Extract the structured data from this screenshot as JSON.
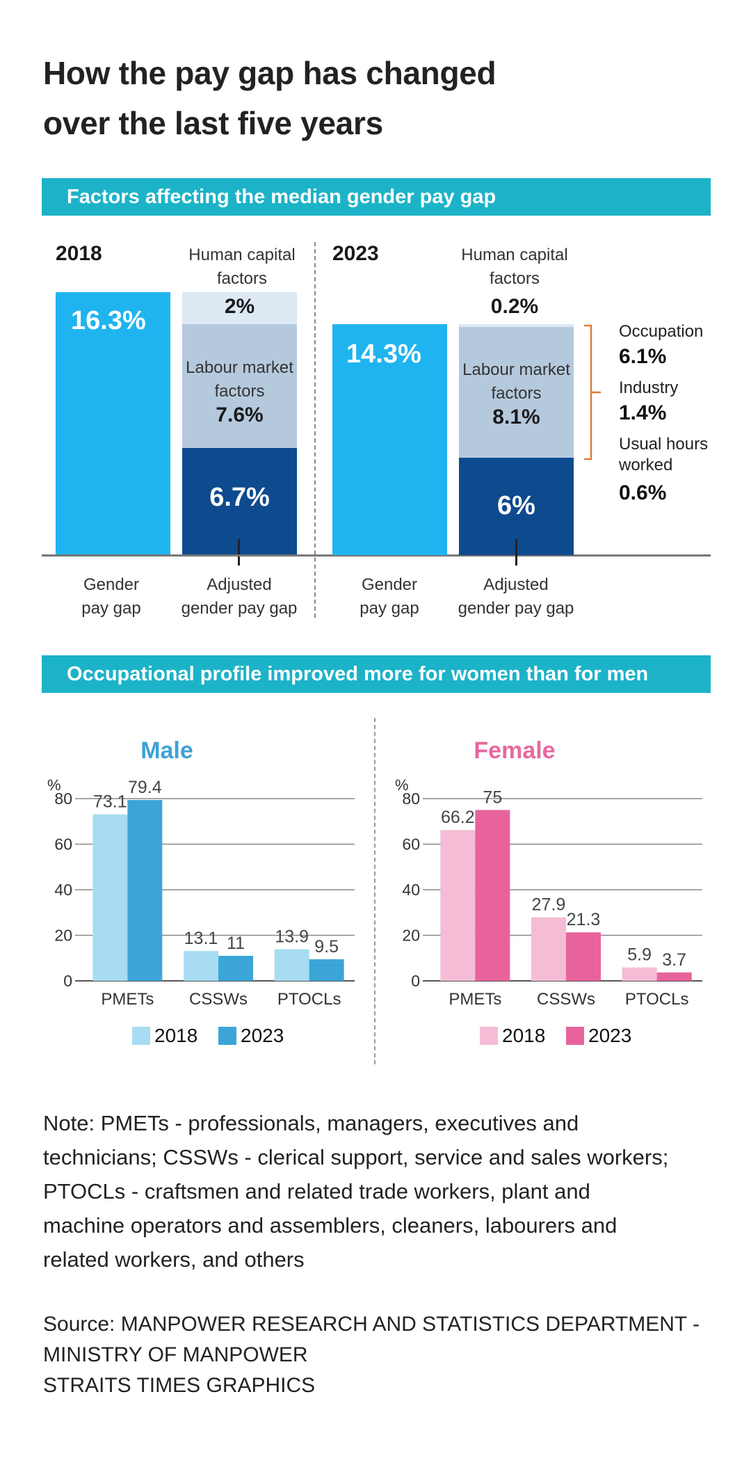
{
  "title_line1": "How the pay gap has changed",
  "title_line2": "over the last five years",
  "section1": {
    "banner": "Factors affecting the median gender pay gap",
    "y2018": {
      "year": "2018",
      "gender_gap": "16.3%",
      "human_capital_label_1": "Human capital",
      "human_capital_label_2": "factors",
      "human_capital_value": "2%",
      "labour_label_1": "Labour market",
      "labour_label_2": "factors",
      "labour_value": "7.6%",
      "adjusted_value": "6.7%",
      "bottom_gender_1": "Gender",
      "bottom_gender_2": "pay gap",
      "bottom_adjusted_1": "Adjusted",
      "bottom_adjusted_2": "gender pay gap"
    },
    "y2023": {
      "year": "2023",
      "gender_gap": "14.3%",
      "human_capital_label_1": "Human capital",
      "human_capital_label_2": "factors",
      "human_capital_value": "0.2%",
      "labour_label_1": "Labour market",
      "labour_label_2": "factors",
      "labour_value": "8.1%",
      "adjusted_value": "6%",
      "bottom_gender_1": "Gender",
      "bottom_gender_2": "pay gap",
      "bottom_adjusted_1": "Adjusted",
      "bottom_adjusted_2": "gender pay gap",
      "breakdown": {
        "occupation_label": "Occupation",
        "occupation_value": "6.1%",
        "industry_label": "Industry",
        "industry_value": "1.4%",
        "hours_label_1": "Usual hours",
        "hours_label_2": "worked",
        "hours_value": "0.6%"
      }
    }
  },
  "section2": {
    "banner": "Occupational profile improved more for women than for men"
  },
  "colors": {
    "banner": "#1cb3c8",
    "gender_gap_bar": "#1fb4ef",
    "human_capital": "#dde9f3",
    "labour_market": "#b5c9dd",
    "adjusted": "#0e4a8e",
    "male_2018": "#a8dcf2",
    "male_2023": "#3ba5d8",
    "female_2018": "#f4bdd5",
    "female_2023": "#e8639b",
    "male_title": "#3da2d6",
    "female_title": "#e8689e"
  },
  "chart_data": [
    {
      "type": "bar",
      "title": "Male",
      "ylabel": "%",
      "ylim": [
        0,
        80
      ],
      "yticks": [
        0,
        20,
        40,
        60,
        80
      ],
      "categories": [
        "PMETs",
        "CSSWs",
        "PTOCLs"
      ],
      "series": [
        {
          "name": "2018",
          "values": [
            73.1,
            13.1,
            13.9
          ]
        },
        {
          "name": "2023",
          "values": [
            79.4,
            11,
            9.5
          ]
        }
      ],
      "legend": "bottom"
    },
    {
      "type": "bar",
      "title": "Female",
      "ylabel": "%",
      "ylim": [
        0,
        80
      ],
      "yticks": [
        0,
        20,
        40,
        60,
        80
      ],
      "categories": [
        "PMETs",
        "CSSWs",
        "PTOCLs"
      ],
      "series": [
        {
          "name": "2018",
          "values": [
            66.2,
            27.9,
            5.9
          ]
        },
        {
          "name": "2023",
          "values": [
            75,
            21.3,
            3.7
          ]
        }
      ],
      "legend": "bottom"
    }
  ],
  "note": {
    "line1": "Note: PMETs - professionals, managers, executives and",
    "line2": "technicians; CSSWs - clerical support, service and sales workers;",
    "line3": "PTOCLs - craftsmen and related trade workers, plant and",
    "line4": "machine operators and assemblers, cleaners, labourers and",
    "line5": "related workers, and others"
  },
  "source": {
    "line1": "Source: MANPOWER RESEARCH AND STATISTICS DEPARTMENT -",
    "line2": "MINISTRY OF MANPOWER",
    "line3": "STRAITS TIMES GRAPHICS"
  }
}
